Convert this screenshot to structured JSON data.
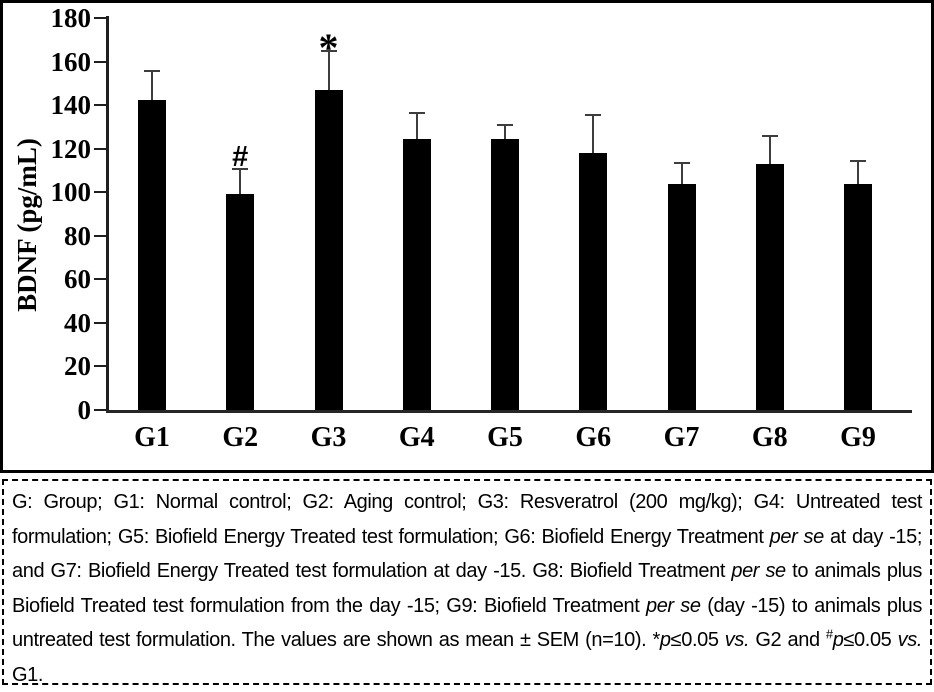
{
  "chart_data": {
    "type": "bar",
    "title": "",
    "xlabel": "",
    "ylabel": "BDNF (pg/mL)",
    "ylim": [
      0,
      180
    ],
    "yticks": [
      0,
      20,
      40,
      60,
      80,
      100,
      120,
      140,
      160,
      180
    ],
    "categories": [
      "G1",
      "G2",
      "G3",
      "G4",
      "G5",
      "G6",
      "G7",
      "G8",
      "G9"
    ],
    "values": [
      142.5,
      99,
      147,
      124.5,
      124.5,
      118,
      104,
      113,
      104
    ],
    "errors_sem": [
      13,
      11.5,
      18,
      12,
      6.5,
      17.5,
      9.5,
      13,
      10.5
    ],
    "annotations": [
      "",
      "#",
      "*",
      "",
      "",
      "",
      "",
      "",
      ""
    ],
    "bar_color": "#000000",
    "error_bar_color": "#3d3d3d",
    "grid": false,
    "legend_position": "none"
  },
  "caption": {
    "segments": [
      {
        "text": "G: Group; G1:  Normal control; G2: Aging control; G3: Resveratrol (200 mg/kg); G4: Untreated test formulation; G5: Biofield Energy Treated test formulation; G6: Biofield Energy Treatment "
      },
      {
        "text": "per se",
        "italic": true
      },
      {
        "text": " at day -15; and G7: Biofield Energy Treated test formulation at day -15. G8: Biofield Treatment "
      },
      {
        "text": "per se",
        "italic": true
      },
      {
        "text": " to animals plus Biofield Treated test formulation from the day -15; G9: Biofield Treatment "
      },
      {
        "text": "per se",
        "italic": true
      },
      {
        "text": " (day -15) to animals plus untreated test formulation. The values are shown as mean ± SEM (n=10). "
      },
      {
        "text": "*"
      },
      {
        "text": "p",
        "italic": true
      },
      {
        "text": "≤0.05 "
      },
      {
        "text": "vs.",
        "italic": true
      },
      {
        "text": " G2 and "
      },
      {
        "text": "#",
        "sup": true
      },
      {
        "text": "p",
        "italic": true
      },
      {
        "text": "≤0.05 "
      },
      {
        "text": "vs.",
        "italic": true
      },
      {
        "text": " G1."
      }
    ]
  }
}
